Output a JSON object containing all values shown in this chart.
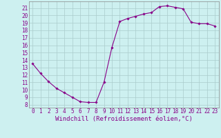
{
  "hours": [
    0,
    1,
    2,
    3,
    4,
    5,
    6,
    7,
    8,
    9,
    10,
    11,
    12,
    13,
    14,
    15,
    16,
    17,
    18,
    19,
    20,
    21,
    22,
    23
  ],
  "temps": [
    13.5,
    12.2,
    11.1,
    10.2,
    9.6,
    9.0,
    8.4,
    8.3,
    8.3,
    11.0,
    15.7,
    19.2,
    19.6,
    19.9,
    20.2,
    20.4,
    21.2,
    21.3,
    21.1,
    20.9,
    19.1,
    18.9,
    18.9,
    18.6
  ],
  "line_color": "#880088",
  "marker_color": "#880088",
  "bg_color": "#cdf0f0",
  "grid_color": "#aacccc",
  "xlabel": "Windchill (Refroidissement éolien,°C)",
  "ytick_labels": [
    "8",
    "9",
    "10",
    "11",
    "12",
    "13",
    "14",
    "15",
    "16",
    "17",
    "18",
    "19",
    "20",
    "21"
  ],
  "ytick_vals": [
    8,
    9,
    10,
    11,
    12,
    13,
    14,
    15,
    16,
    17,
    18,
    19,
    20,
    21
  ],
  "ylim": [
    7.6,
    21.9
  ],
  "xlim": [
    -0.5,
    23.5
  ],
  "tick_fontsize": 5.5,
  "xlabel_fontsize": 6.5,
  "font_family": "monospace"
}
